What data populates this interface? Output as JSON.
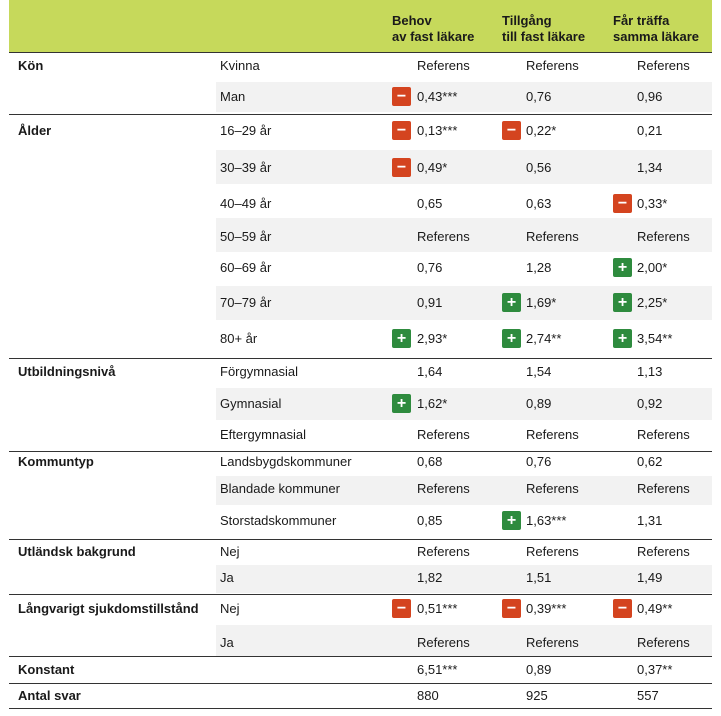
{
  "columns": {
    "c1_l1": "Behov",
    "c1_l2": "av fast läkare",
    "c2_l1": "Tillgång",
    "c2_l2": "till fast läkare",
    "c3_l1": "Får träffa",
    "c3_l2": "samma läkare"
  },
  "icons": {
    "minus": "−",
    "plus": "+"
  },
  "rows": [
    {
      "cat": "Kön",
      "sub": "Kvinna",
      "v": [
        "Referens",
        "Referens",
        "Referens"
      ],
      "b": [
        "",
        "",
        ""
      ]
    },
    {
      "cat": "",
      "sub": "Man",
      "v": [
        "0,43***",
        "0,76",
        "0,96"
      ],
      "b": [
        "minus",
        "",
        ""
      ]
    },
    {
      "cat": "Ålder",
      "sub": "16–29 år",
      "v": [
        "0,13***",
        "0,22*",
        "0,21"
      ],
      "b": [
        "minus",
        "minus",
        ""
      ]
    },
    {
      "cat": "",
      "sub": "30–39 år",
      "v": [
        "0,49*",
        "0,56",
        "1,34"
      ],
      "b": [
        "minus",
        "",
        ""
      ]
    },
    {
      "cat": "",
      "sub": "40–49 år",
      "v": [
        "0,65",
        "0,63",
        "0,33*"
      ],
      "b": [
        "",
        "",
        "minus"
      ]
    },
    {
      "cat": "",
      "sub": "50–59 år",
      "v": [
        "Referens",
        "Referens",
        "Referens"
      ],
      "b": [
        "",
        "",
        ""
      ]
    },
    {
      "cat": "",
      "sub": "60–69 år",
      "v": [
        "0,76",
        "1,28",
        "2,00*"
      ],
      "b": [
        "",
        "",
        "plus"
      ]
    },
    {
      "cat": "",
      "sub": "70–79 år",
      "v": [
        "0,91",
        "1,69*",
        "2,25*"
      ],
      "b": [
        "",
        "plus",
        "plus"
      ]
    },
    {
      "cat": "",
      "sub": "80+ år",
      "v": [
        "2,93*",
        "2,74**",
        "3,54**"
      ],
      "b": [
        "plus",
        "plus",
        "plus"
      ]
    },
    {
      "cat": "Utbildningsnivå",
      "sub": "Förgymnasial",
      "v": [
        "1,64",
        "1,54",
        "1,13"
      ],
      "b": [
        "",
        "",
        ""
      ]
    },
    {
      "cat": "",
      "sub": "Gymnasial",
      "v": [
        "1,62*",
        "0,89",
        "0,92"
      ],
      "b": [
        "plus",
        "",
        ""
      ]
    },
    {
      "cat": "",
      "sub": "Eftergymnasial",
      "v": [
        "Referens",
        "Referens",
        "Referens"
      ],
      "b": [
        "",
        "",
        ""
      ]
    },
    {
      "cat": "Kommuntyp",
      "sub": "Landsbygdskommuner",
      "v": [
        "0,68",
        "0,76",
        "0,62"
      ],
      "b": [
        "",
        "",
        ""
      ]
    },
    {
      "cat": "",
      "sub": "Blandade kommuner",
      "v": [
        "Referens",
        "Referens",
        "Referens"
      ],
      "b": [
        "",
        "",
        ""
      ]
    },
    {
      "cat": "",
      "sub": "Storstadskommuner",
      "v": [
        "0,85",
        "1,63***",
        "1,31"
      ],
      "b": [
        "",
        "plus",
        ""
      ]
    },
    {
      "cat": "Utländsk bakgrund",
      "sub": "Nej",
      "v": [
        "Referens",
        "Referens",
        "Referens"
      ],
      "b": [
        "",
        "",
        ""
      ]
    },
    {
      "cat": "",
      "sub": "Ja",
      "v": [
        "1,82",
        "1,51",
        "1,49"
      ],
      "b": [
        "",
        "",
        ""
      ]
    },
    {
      "cat": "Långvarigt sjukdomstillstånd",
      "sub": "Nej",
      "v": [
        "0,51***",
        "0,39***",
        "0,49**"
      ],
      "b": [
        "minus",
        "minus",
        "minus"
      ]
    },
    {
      "cat": "",
      "sub": "Ja",
      "v": [
        "Referens",
        "Referens",
        "Referens"
      ],
      "b": [
        "",
        "",
        ""
      ]
    },
    {
      "cat": "Konstant",
      "sub": "",
      "v": [
        "6,51***",
        "0,89",
        "0,37**"
      ],
      "b": [
        "",
        "",
        ""
      ]
    },
    {
      "cat": "Antal svar",
      "sub": "",
      "v": [
        "880",
        "925",
        "557"
      ],
      "b": [
        "",
        "",
        ""
      ]
    }
  ]
}
